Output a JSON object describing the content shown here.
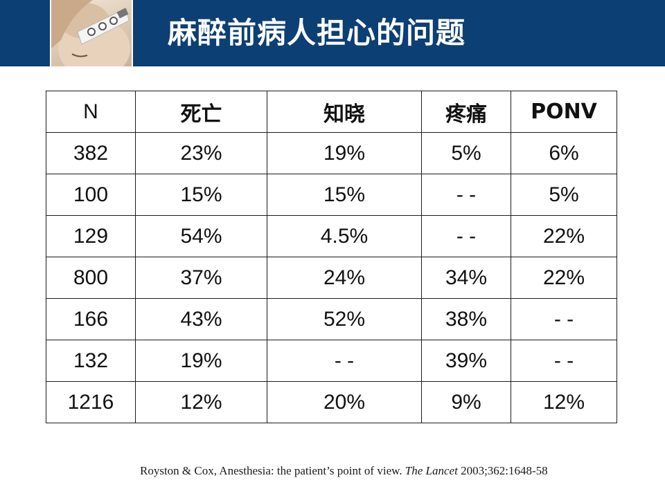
{
  "slide": {
    "title": "麻醉前病人担心的问题",
    "header_image": "patient-face-photo",
    "colors": {
      "header_band": "#0c3f73",
      "title_text": "#ffffff",
      "table_border": "#1a1a1a",
      "body_text": "#111111"
    }
  },
  "table": {
    "headers": [
      "N",
      "死亡",
      "知晓",
      "疼痛",
      "PONV"
    ],
    "rows": [
      [
        "382",
        "23%",
        "19%",
        "5%",
        "6%"
      ],
      [
        "100",
        "15%",
        "15%",
        "- -",
        "5%"
      ],
      [
        "129",
        "54%",
        "4.5%",
        "- -",
        "22%"
      ],
      [
        "800",
        "37%",
        "24%",
        "34%",
        "22%"
      ],
      [
        "166",
        "43%",
        "52%",
        "38%",
        "- -"
      ],
      [
        "132",
        "19%",
        "- -",
        "39%",
        "- -"
      ],
      [
        "1216",
        "12%",
        "20%",
        "9%",
        "12%"
      ]
    ]
  },
  "citation": {
    "text": "Royston & Cox, Anesthesia: the patient’s point of view.",
    "journal": "The Lancet",
    "details": "2003;362:1648-58"
  }
}
